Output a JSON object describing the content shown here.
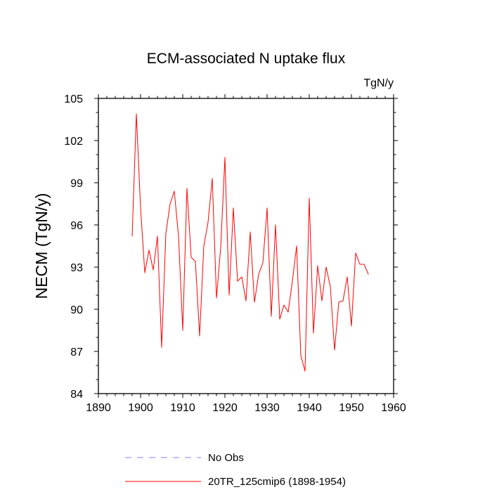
{
  "chart_data": {
    "type": "line",
    "title": "ECM-associated N uptake flux",
    "units_label": "TgN/y",
    "xlabel": "",
    "ylabel": "NECM  (TgN/y)",
    "xlim": [
      1890,
      1960
    ],
    "ylim": [
      84,
      105
    ],
    "x_ticks": [
      1890,
      1900,
      1910,
      1920,
      1930,
      1940,
      1950,
      1960
    ],
    "y_ticks": [
      84,
      87,
      90,
      93,
      96,
      99,
      102,
      105
    ],
    "x_minor_step": 2,
    "y_minor_step": 1,
    "grid": false,
    "legend": [
      {
        "label": "No Obs",
        "color": "#8080ff",
        "style": "dashed"
      },
      {
        "label": "20TR_125cmip6 (1898-1954)",
        "color": "#ff0000",
        "style": "solid"
      }
    ],
    "series": [
      {
        "name": "20TR_125cmip6 (1898-1954)",
        "color": "#ff0000",
        "x": [
          1898,
          1899,
          1900,
          1901,
          1902,
          1903,
          1904,
          1905,
          1906,
          1907,
          1908,
          1909,
          1910,
          1911,
          1912,
          1913,
          1914,
          1915,
          1916,
          1917,
          1918,
          1919,
          1920,
          1921,
          1922,
          1923,
          1924,
          1925,
          1926,
          1927,
          1928,
          1929,
          1930,
          1931,
          1932,
          1933,
          1934,
          1935,
          1936,
          1937,
          1938,
          1939,
          1940,
          1941,
          1942,
          1943,
          1944,
          1945,
          1946,
          1947,
          1948,
          1949,
          1950,
          1951,
          1952,
          1953,
          1954
        ],
        "values": [
          95.2,
          103.9,
          97.2,
          92.6,
          94.2,
          92.8,
          95.2,
          87.3,
          95.4,
          97.5,
          98.4,
          95.2,
          88.5,
          98.6,
          93.7,
          93.4,
          88.1,
          94.5,
          96.2,
          99.3,
          90.8,
          94.4,
          100.8,
          91.0,
          97.2,
          92.0,
          92.3,
          90.6,
          95.5,
          90.5,
          92.5,
          93.3,
          97.2,
          89.5,
          96.0,
          89.3,
          90.3,
          89.8,
          92.0,
          94.5,
          86.7,
          85.6,
          97.9,
          88.3,
          93.1,
          90.6,
          93.0,
          91.6,
          87.1,
          90.5,
          90.6,
          92.3,
          88.8,
          94.0,
          93.2,
          93.2,
          92.5
        ]
      }
    ]
  }
}
